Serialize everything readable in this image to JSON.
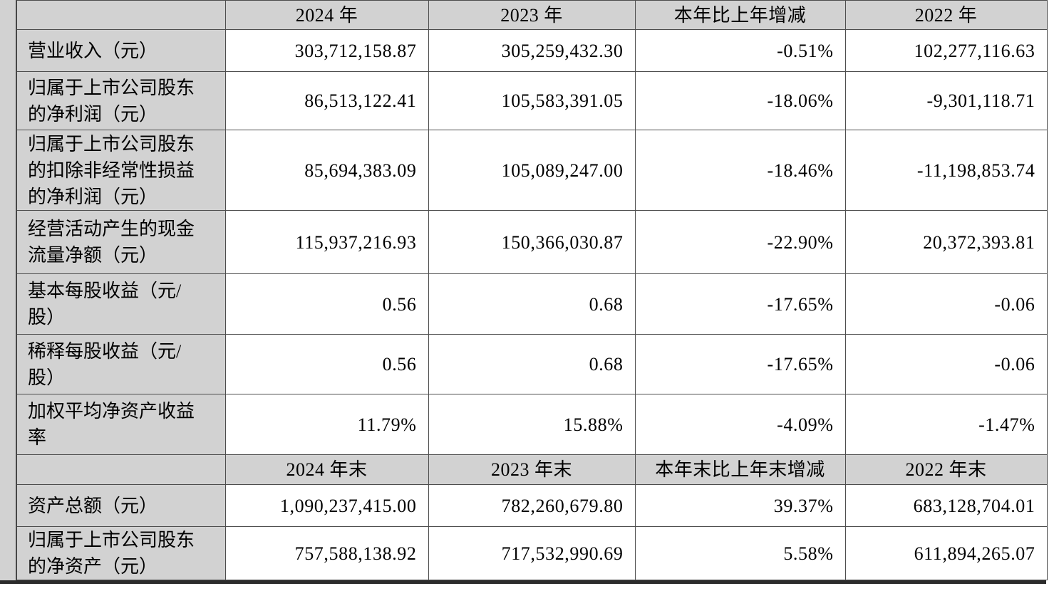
{
  "colors": {
    "cell_gray": "#d2d2d2",
    "data_cell_bg": "#ffffff",
    "grid_line": "#4d4d4d",
    "bottom_rule": "#2b2b2b",
    "text": "#000000"
  },
  "table": {
    "rows": [
      {
        "type": "header",
        "cells": [
          "",
          "2024 年",
          "2023 年",
          "本年比上年增减",
          "2022 年"
        ]
      },
      {
        "type": "data",
        "cells": [
          "营业收入（元）",
          "303,712,158.87",
          "305,259,432.30",
          "-0.51%",
          "102,277,116.63"
        ]
      },
      {
        "type": "data",
        "cells": [
          "归属于上市公司股东\n的净利润（元）",
          "86,513,122.41",
          "105,583,391.05",
          "-18.06%",
          "-9,301,118.71"
        ]
      },
      {
        "type": "data",
        "cells": [
          "归属于上市公司股东\n的扣除非经常性损益\n的净利润（元）",
          "85,694,383.09",
          "105,089,247.00",
          "-18.46%",
          "-11,198,853.74"
        ]
      },
      {
        "type": "data",
        "cells": [
          "经营活动产生的现金\n流量净额（元）",
          "115,937,216.93",
          "150,366,030.87",
          "-22.90%",
          "20,372,393.81"
        ]
      },
      {
        "type": "data",
        "cells": [
          "基本每股收益（元/\n股）",
          "0.56",
          "0.68",
          "-17.65%",
          "-0.06"
        ]
      },
      {
        "type": "data",
        "cells": [
          "稀释每股收益（元/\n股）",
          "0.56",
          "0.68",
          "-17.65%",
          "-0.06"
        ]
      },
      {
        "type": "data",
        "cells": [
          "加权平均净资产收益\n率",
          "11.79%",
          "15.88%",
          "-4.09%",
          "-1.47%"
        ]
      },
      {
        "type": "header",
        "cells": [
          "",
          "2024 年末",
          "2023 年末",
          "本年末比上年末增减",
          "2022 年末"
        ]
      },
      {
        "type": "data",
        "cells": [
          "资产总额（元）",
          "1,090,237,415.00",
          "782,260,679.80",
          "39.37%",
          "683,128,704.01"
        ]
      },
      {
        "type": "data",
        "cells": [
          "归属于上市公司股东\n的净资产（元）",
          "757,588,138.92",
          "717,532,990.69",
          "5.58%",
          "611,894,265.07"
        ]
      }
    ]
  }
}
